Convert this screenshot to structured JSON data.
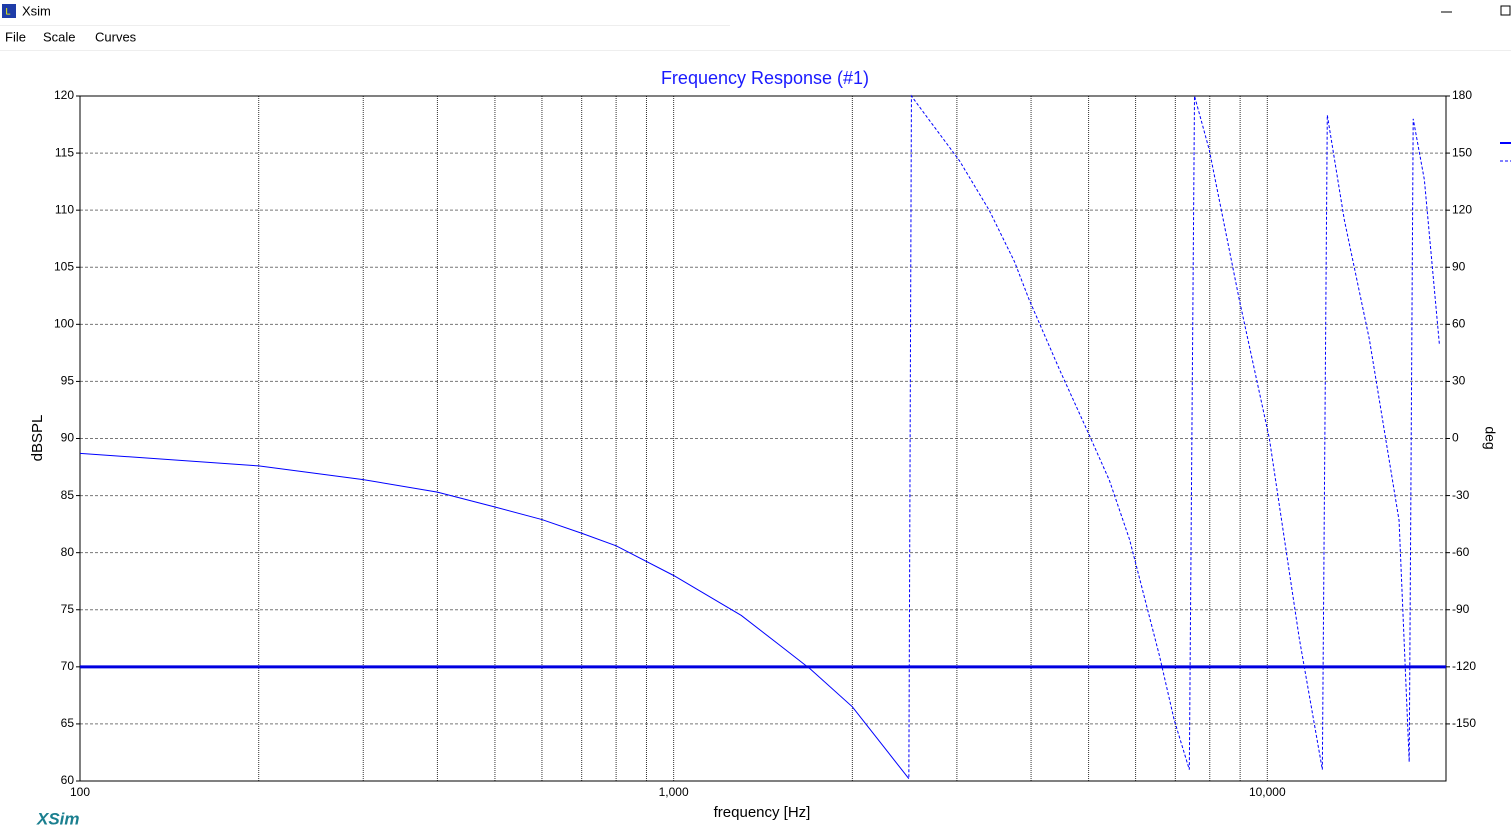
{
  "window": {
    "title": "Xsim",
    "menu": [
      "File",
      "Scale",
      "Curves"
    ],
    "logo": "XSim"
  },
  "chart_data": {
    "type": "line",
    "title": "Frequency Response (#1)",
    "xlabel": "frequency [Hz]",
    "ylabel": "dBSPL",
    "y2label": "deg",
    "xscale": "log",
    "xlim": [
      100,
      20000
    ],
    "xticks": [
      100,
      {
        "value": 1000,
        "label": "1,000"
      },
      {
        "value": 10000,
        "label": "10,000"
      }
    ],
    "xminor": [
      200,
      300,
      400,
      500,
      600,
      700,
      800,
      900,
      2000,
      3000,
      4000,
      5000,
      6000,
      7000,
      8000,
      9000
    ],
    "ylim": [
      60,
      120
    ],
    "yticks": [
      60,
      65,
      70,
      75,
      80,
      85,
      90,
      95,
      100,
      105,
      110,
      115,
      120
    ],
    "y2lim": [
      -180,
      180
    ],
    "y2ticks": [
      -150,
      -120,
      -90,
      -60,
      -30,
      0,
      30,
      60,
      90,
      120,
      150,
      180
    ],
    "grid": true,
    "series": [
      {
        "color": "#0000ff",
        "style": "solid",
        "width": 1,
        "x": [
          100,
          200,
          300,
          400,
          500,
          600,
          700,
          800,
          1000,
          1300,
          1500,
          1700,
          2000,
          2490
        ],
        "values": [
          88.7,
          87.6,
          86.4,
          85.3,
          84.0,
          82.9,
          81.7,
          80.6,
          78.0,
          74.5,
          72.0,
          69.8,
          66.5,
          60.2
        ]
      },
      {
        "color": "#0000e0",
        "style": "solid",
        "width": 3,
        "x": [
          100,
          20000
        ],
        "values": [
          70,
          70
        ]
      },
      {
        "color": "#0000ff",
        "style": "dashed",
        "width": 1,
        "axis": "y2",
        "x": [
          2490,
          2515,
          2700,
          3030,
          3400,
          3750,
          3970,
          4470,
          5010,
          5420,
          5860,
          6580,
          6970,
          7390,
          7540,
          7980,
          8970,
          10080,
          11320,
          12380,
          12620,
          13480,
          14860,
          16670,
          17340,
          17610,
          18390,
          19500
        ],
        "values": [
          -178,
          180,
          167,
          146,
          120,
          93,
          73,
          36,
          2,
          -22,
          -53,
          -114,
          -148,
          -174,
          180,
          152,
          73,
          0,
          -105,
          -174,
          170,
          115,
          52,
          -43,
          -170,
          168,
          136,
          49
        ]
      }
    ]
  }
}
